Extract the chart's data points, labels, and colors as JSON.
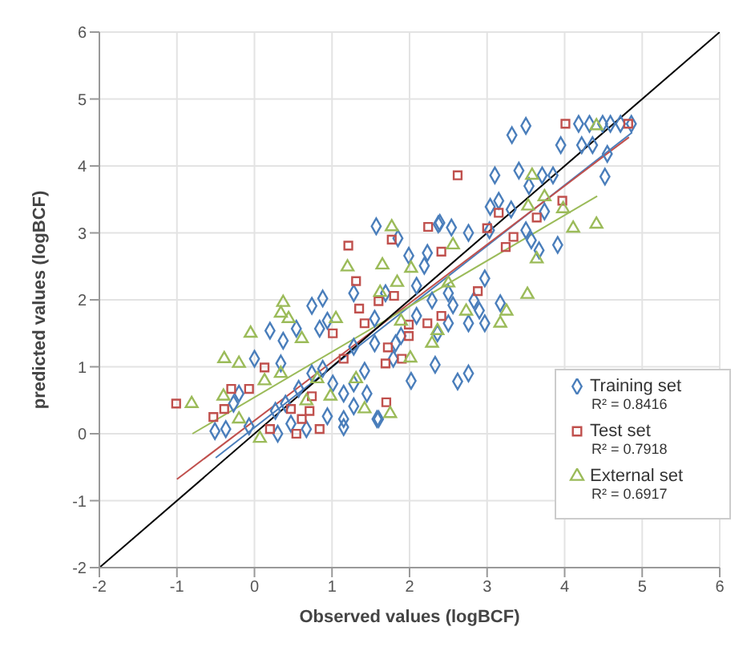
{
  "chart_data": {
    "type": "scatter",
    "xlabel": "Observed values (logBCF)",
    "ylabel": "predicted values (logBCF)",
    "xlim": [
      -2,
      6
    ],
    "ylim": [
      -2,
      6
    ],
    "xticks": [
      -2,
      -1,
      0,
      1,
      2,
      3,
      4,
      5,
      6
    ],
    "yticks": [
      -2,
      -1,
      0,
      1,
      2,
      3,
      4,
      5,
      6
    ],
    "grid": true,
    "legend": "bottom right",
    "annotations": [
      "R² = 0.8416",
      "R² = 0.7918",
      "R² = 0.6917"
    ],
    "series": [
      {
        "name": "Training set",
        "color": "#4a7ebb",
        "marker": "diamond",
        "x": [
          3.5,
          3.32,
          4.18,
          4.32,
          4.49,
          4.59,
          4.72,
          4.86,
          3.95,
          4.22,
          4.36,
          4.55,
          4.52,
          3.1,
          3.41,
          3.71,
          3.85,
          3.54,
          3.15,
          3.04,
          3.31,
          3.74,
          2.37,
          2.54,
          1.57,
          2.39,
          2.76,
          3.03,
          3.5,
          3.57,
          3.67,
          3.91,
          2.09,
          2.23,
          2.19,
          1.99,
          1.85,
          2.29,
          2.5,
          2.56,
          2.83,
          2.9,
          2.97,
          3.17,
          2.97,
          2.76,
          2.5,
          2.33,
          2.62,
          2.76,
          2.02,
          1.79,
          1.82,
          1.55,
          1.28,
          1.55,
          1.69,
          1.28,
          0.88,
          0.74,
          0.94,
          0.84,
          0.54,
          0.37,
          0.2,
          0,
          -0.2,
          -0.27,
          -0.51,
          -0.37,
          -0.07,
          0.27,
          0.4,
          0.57,
          0.74,
          0.88,
          1.01,
          1.15,
          1.28,
          1.45,
          0.94,
          1.15,
          1.6,
          0.3,
          0.47,
          0.67,
          1.28,
          2.09,
          1.89,
          2.36,
          1.42,
          0.34,
          1.15,
          1.58
        ],
        "values": [
          4.6,
          4.46,
          4.63,
          4.63,
          4.63,
          4.63,
          4.63,
          4.63,
          4.31,
          4.31,
          4.31,
          4.18,
          3.84,
          3.86,
          3.93,
          3.86,
          3.86,
          3.7,
          3.48,
          3.39,
          3.35,
          3.32,
          3.13,
          3.08,
          3.1,
          3.15,
          3.0,
          3.04,
          3.04,
          2.89,
          2.74,
          2.82,
          2.21,
          2.7,
          2.51,
          2.66,
          2.92,
          1.99,
          2.1,
          1.92,
          1.99,
          1.84,
          2.32,
          1.95,
          1.65,
          1.65,
          1.65,
          1.03,
          0.78,
          0.9,
          0.79,
          1.12,
          1.35,
          1.35,
          1.3,
          1.72,
          2.1,
          2.1,
          2.02,
          1.91,
          1.69,
          1.57,
          1.57,
          1.39,
          1.54,
          1.12,
          0.6,
          0.45,
          0.04,
          0.07,
          0.11,
          0.34,
          0.45,
          0.67,
          0.9,
          0.97,
          0.75,
          0.6,
          0.75,
          0.6,
          0.26,
          0.22,
          0.22,
          0,
          0.15,
          0.07,
          0.41,
          1.76,
          1.46,
          1.5,
          0.94,
          1.05,
          0.1,
          0.22
        ]
      },
      {
        "name": "Test set",
        "color": "#c0504d",
        "marker": "square",
        "x": [
          -1.01,
          -0.3,
          -0.39,
          -0.53,
          1.21,
          1.77,
          2.24,
          1.31,
          1.35,
          1.42,
          1.6,
          1.8,
          1.99,
          1.99,
          1.72,
          1.69,
          1.9,
          1.7,
          2.23,
          2.41,
          2.41,
          2.88,
          3.24,
          3.34,
          0.13,
          -0.07,
          0.47,
          0.74,
          0.61,
          0.84,
          0.54,
          0.2,
          1.01,
          1.15,
          0.71,
          2.62,
          4.01,
          4.82,
          3.97,
          3.64,
          3.0,
          3.15
        ],
        "values": [
          0.45,
          0.67,
          0.37,
          0.25,
          2.81,
          2.9,
          3.09,
          2.28,
          1.87,
          1.65,
          1.98,
          2.06,
          1.63,
          1.46,
          1.29,
          1.05,
          1.12,
          0.47,
          1.65,
          2.72,
          1.76,
          2.13,
          2.79,
          2.94,
          0.99,
          0.67,
          0.37,
          0.56,
          0.22,
          0.07,
          0,
          0.07,
          1.5,
          1.12,
          0.34,
          3.86,
          4.63,
          4.63,
          3.48,
          3.23,
          3.07,
          3.3
        ]
      },
      {
        "name": "External set",
        "color": "#9bbb59",
        "marker": "triangle",
        "x": [
          -0.81,
          -0.4,
          -0.39,
          -0.2,
          -0.05,
          0.37,
          0.34,
          0.44,
          0.13,
          0.34,
          0.61,
          1.05,
          1.2,
          1.65,
          1.77,
          1.84,
          2.02,
          1.62,
          1.89,
          2.01,
          2.29,
          2.36,
          2.5,
          2.73,
          3.25,
          3.17,
          3.52,
          3.64,
          4.11,
          2.56,
          1.75,
          1.42,
          0.67,
          0.98,
          0.07,
          -0.2,
          0.81,
          1.31,
          3.58,
          4.41,
          3.74,
          3.98,
          4.41,
          3.53
        ],
        "values": [
          0.45,
          0.56,
          1.12,
          1.05,
          1.5,
          1.96,
          1.8,
          1.72,
          0.79,
          0.9,
          1.42,
          1.72,
          2.49,
          2.52,
          3.09,
          2.26,
          2.47,
          2.11,
          1.68,
          1.13,
          1.35,
          1.54,
          2.25,
          1.83,
          1.83,
          1.65,
          2.08,
          2.61,
          3.07,
          2.82,
          0.3,
          0.37,
          0.49,
          0.56,
          -0.07,
          0.22,
          0.82,
          0.82,
          3.86,
          3.13,
          3.54,
          3.36,
          4.6,
          3.4
        ]
      },
      {
        "type": "line",
        "color": "#4a7ebb",
        "x": [
          -0.5,
          4.87
        ],
        "values": [
          -0.36,
          4.5
        ]
      },
      {
        "type": "line",
        "color": "#c0504d",
        "x": [
          -1.0,
          4.83
        ],
        "values": [
          -0.68,
          4.43
        ]
      },
      {
        "type": "line",
        "color": "#9bbb59",
        "x": [
          -0.8,
          4.42
        ],
        "values": [
          0,
          3.55
        ]
      },
      {
        "type": "line",
        "color": "#000000",
        "x": [
          -2,
          6
        ],
        "values": [
          -2,
          6
        ]
      }
    ]
  }
}
